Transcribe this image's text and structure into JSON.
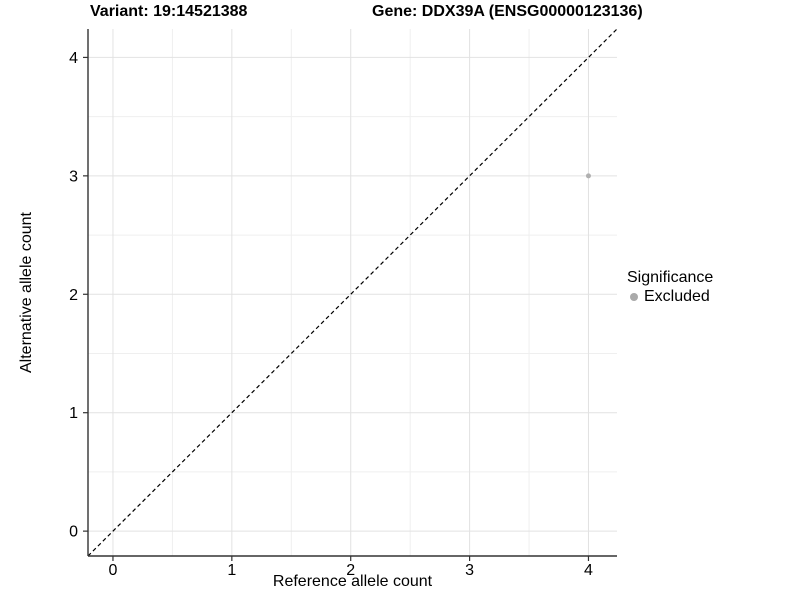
{
  "header": {
    "variant_title": "Variant: 19:14521388",
    "gene_title": "Gene: DDX39A (ENSG00000123136)"
  },
  "legend": {
    "title": "Significance",
    "items": [
      {
        "label": "Excluded",
        "color": "#aaaaaa"
      }
    ]
  },
  "colors": {
    "background": "#ffffff",
    "grid_major": "#e2e2e2",
    "grid_minor": "#efefef",
    "axis": "#333333",
    "tick_text": "#000000",
    "identity_line": "#000000",
    "point": "#b0b0b0"
  },
  "chart_data": {
    "type": "scatter",
    "xlabel": "Reference allele count",
    "ylabel": "Alternative allele count",
    "xlim": [
      -0.21,
      4.24
    ],
    "ylim": [
      -0.21,
      4.24
    ],
    "xticks": [
      0,
      1,
      2,
      3,
      4
    ],
    "yticks": [
      0,
      1,
      2,
      3,
      4
    ],
    "minor_gridlines": [
      0.5,
      1.5,
      2.5,
      3.5
    ],
    "grid": "major+minor",
    "reference_line": {
      "type": "identity y=x",
      "linestyle": "dashed",
      "color": "#000000"
    },
    "series": [
      {
        "name": "Excluded",
        "color": "#b0b0b0",
        "points": [
          {
            "x": 4,
            "y": 3
          }
        ]
      }
    ],
    "legend_position": "right"
  }
}
